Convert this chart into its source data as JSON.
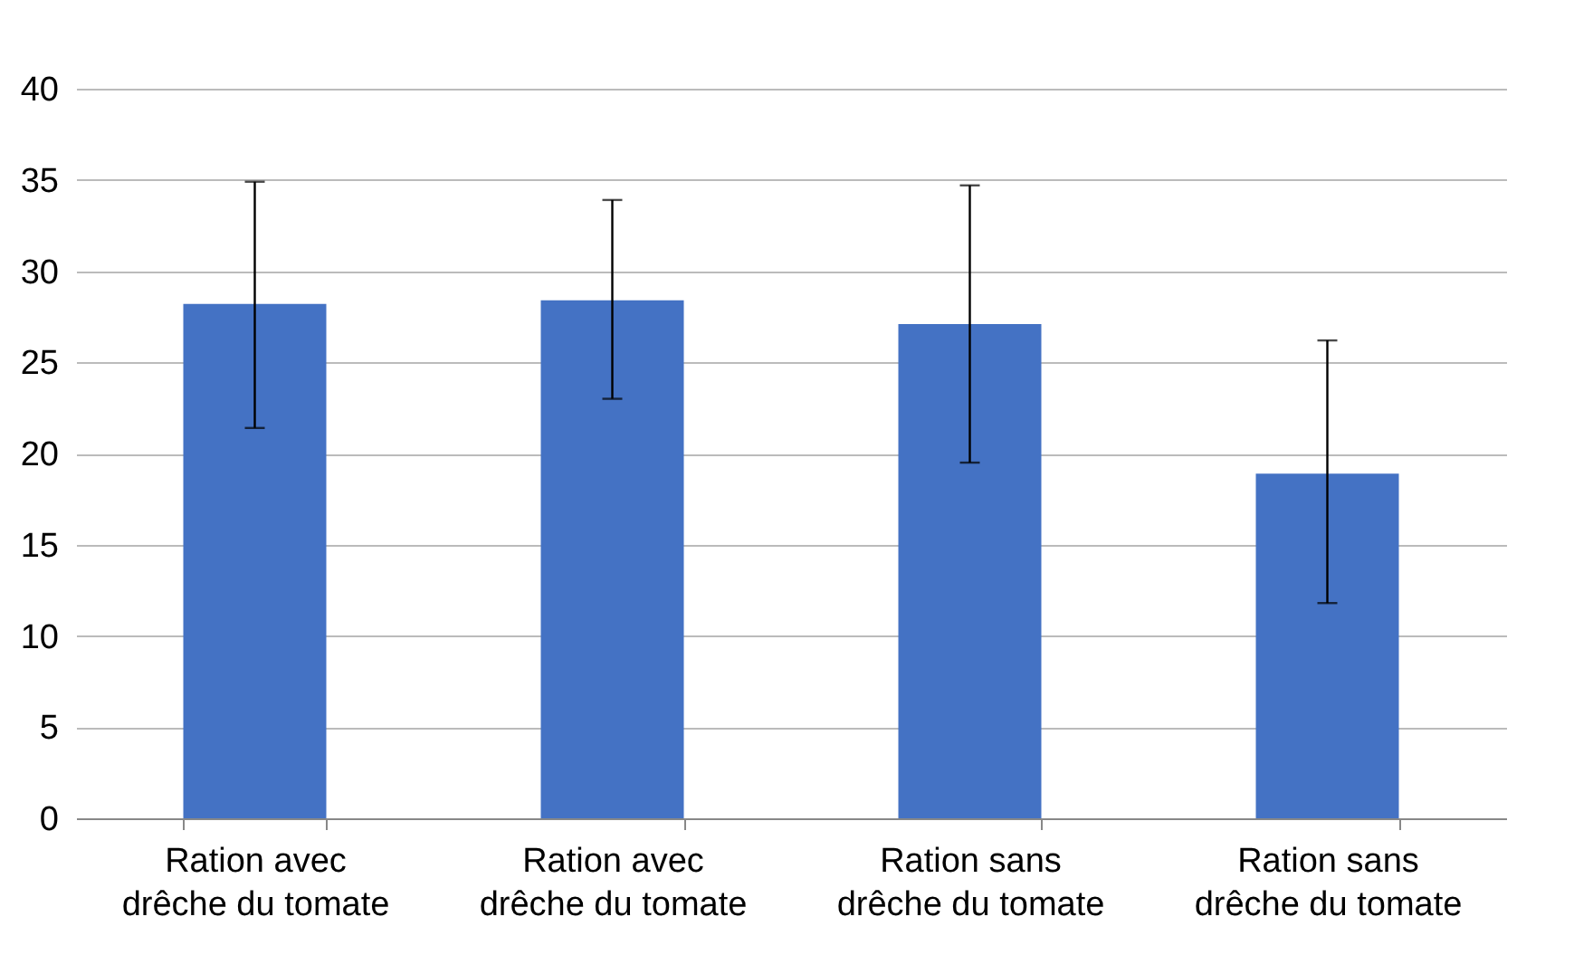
{
  "chart_data": {
    "type": "bar",
    "categories": [
      "Ration avec\ndrêche du tomate",
      "Ration avec\ndrêche du tomate",
      "Ration sans\ndrêche du tomate",
      "Ration sans\ndrêche du tomate"
    ],
    "values": [
      28.2,
      28.4,
      27.1,
      18.9
    ],
    "errors": [
      [
        21.4,
        34.9
      ],
      [
        23.0,
        33.9
      ],
      [
        19.5,
        34.7
      ],
      [
        11.8,
        26.2
      ]
    ],
    "color": "#4472c4",
    "ylim": [
      0,
      40
    ],
    "yticks": [
      0,
      5,
      10,
      15,
      20,
      25,
      30,
      35,
      40
    ],
    "grid": "y"
  }
}
